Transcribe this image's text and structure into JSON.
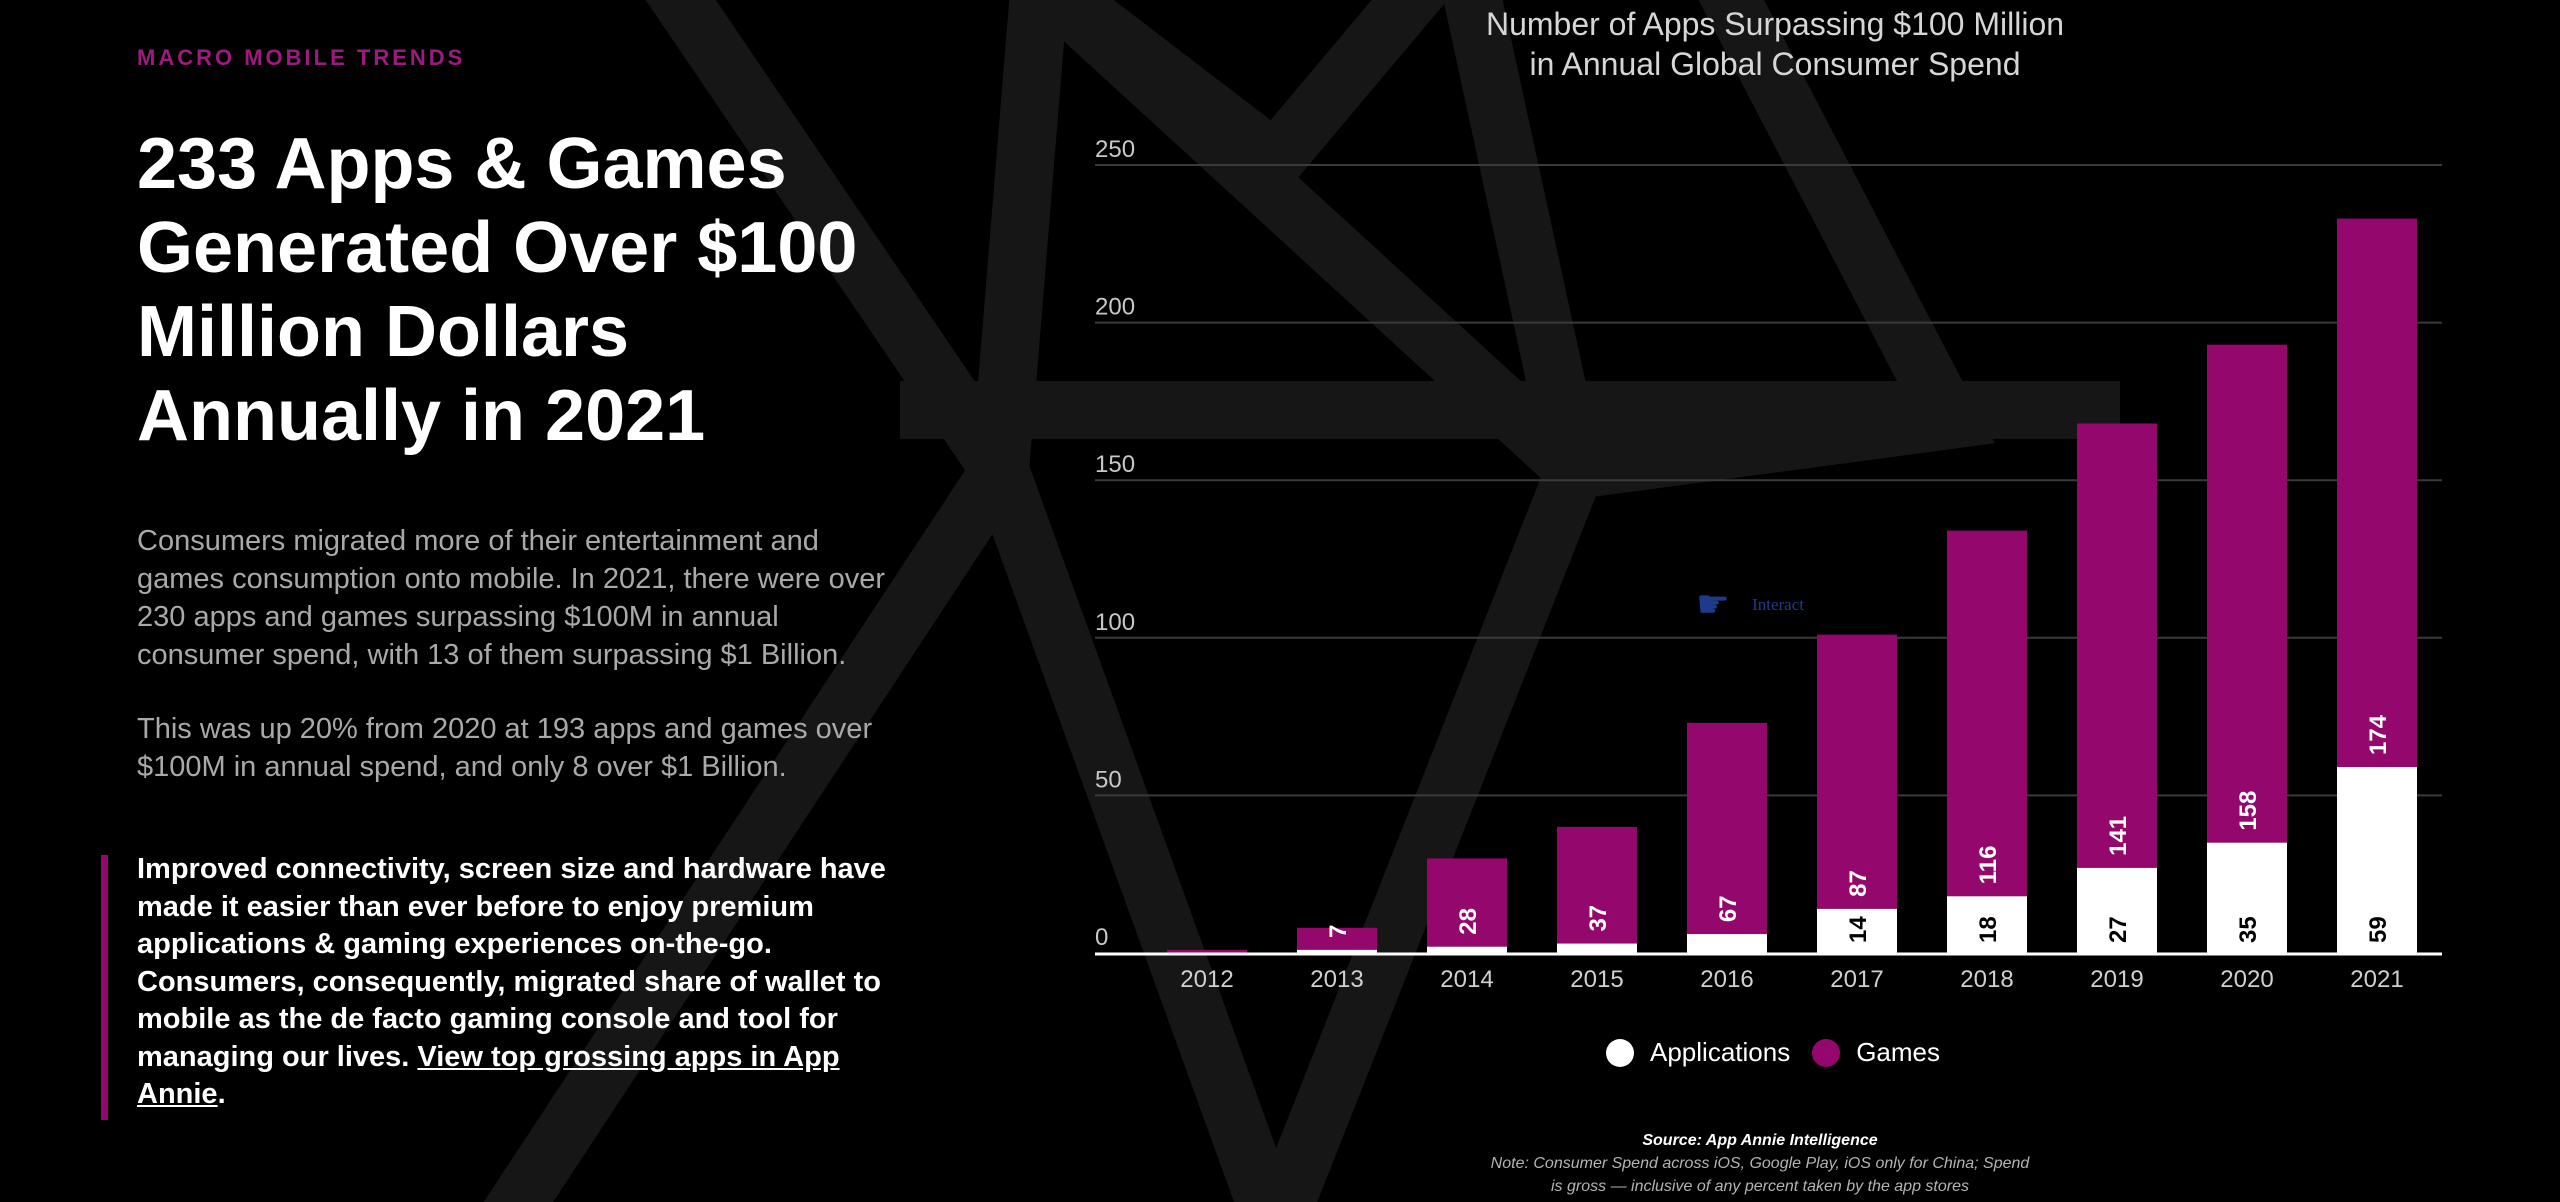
{
  "kicker": "MACRO MOBILE TRENDS",
  "headline": "233 Apps & Games Generated Over $100 Million Dollars Annually in 2021",
  "paragraph1": "Consumers migrated more of their entertainment and games consumption onto mobile. In 2021, there were over 230 apps and games surpassing $100M in annual consumer spend, with 13 of them surpassing $1 Billion.",
  "paragraph2": "This was up 20% from 2020 at 193 apps and games over $100M in annual spend, and only 8 over $1 Billion.",
  "callout": {
    "text": "Improved connectivity, screen size and hardware have made it easier than ever before to enjoy premium applications & gaming experiences on-the-go. Consumers, consequently, migrated share of wallet to mobile as the de facto gaming console and tool for managing our lives.",
    "link_text": "View top grossing apps in App Annie",
    "end": "."
  },
  "interact_label": "Interact",
  "interact_icon": "hand-pointer-icon",
  "colors": {
    "applications": "#ffffff",
    "games": "#94086e",
    "accent": "#9b1b7e"
  },
  "chart_data": {
    "type": "bar",
    "stacked": true,
    "title": [
      "Number of Apps Surpassing $100 Million",
      "in Annual Global Consumer Spend"
    ],
    "categories": [
      "2012",
      "2013",
      "2014",
      "2015",
      "2016",
      "2017",
      "2018",
      "2019",
      "2020",
      "2021"
    ],
    "series": [
      {
        "name": "Applications",
        "values": [
          0,
          1,
          2,
          3,
          6,
          14,
          18,
          27,
          35,
          59
        ],
        "labels": [
          "",
          "",
          "",
          "",
          "",
          "14",
          "18",
          "27",
          "35",
          "59"
        ]
      },
      {
        "name": "Games",
        "values": [
          1,
          7,
          28,
          37,
          67,
          87,
          116,
          141,
          158,
          174
        ],
        "labels": [
          "",
          "7",
          "28",
          "37",
          "67",
          "87",
          "116",
          "141",
          "158",
          "174"
        ]
      }
    ],
    "yticks": [
      0,
      50,
      100,
      150,
      200,
      250
    ],
    "ylim": [
      0,
      250
    ],
    "grid": true,
    "legend": "bottom",
    "source": "Source: App Annie Intelligence",
    "note": [
      "Note: Consumer Spend across iOS, Google Play, iOS only for China; Spend",
      "is gross — inclusive of any percent taken by the app stores"
    ]
  }
}
